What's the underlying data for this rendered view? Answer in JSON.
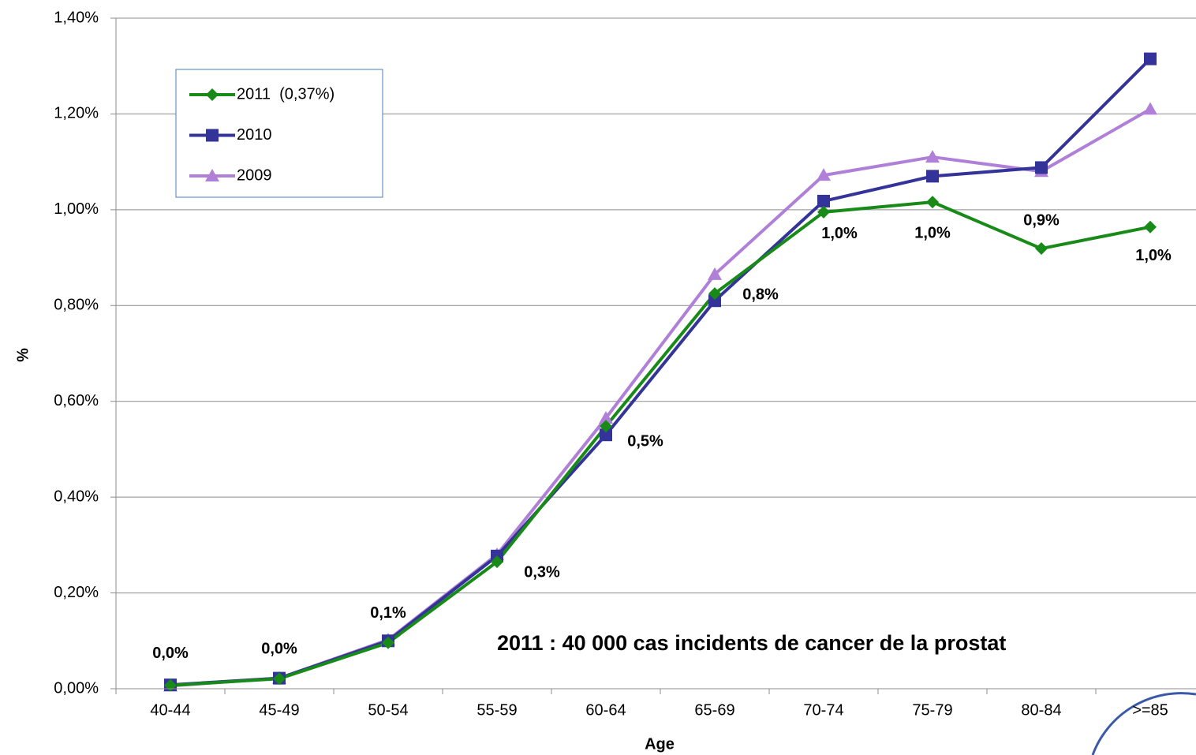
{
  "chart_data": {
    "type": "line",
    "y_label": "%",
    "x_label": "Age",
    "annotation": "2011 : 40 000 cas incidents de cancer de la prostat",
    "categories": [
      "40-44",
      "45-49",
      "50-54",
      "55-59",
      "60-64",
      "65-69",
      "70-74",
      "75-79",
      "80-84",
      ">=85"
    ],
    "series": [
      {
        "name": "2011  (0,37%)",
        "color": "#178a17",
        "marker": "diamond",
        "values": [
          0.007,
          0.021,
          0.096,
          0.265,
          0.548,
          0.825,
          0.995,
          1.016,
          0.919,
          0.964
        ],
        "value_labels": [
          "0,0%",
          "0,0%",
          "0,1%",
          "0,3%",
          "0,5%",
          "0,8%",
          "1,0%",
          "1,0%",
          "0,9%",
          "1,0%"
        ]
      },
      {
        "name": "2010",
        "color": "#333399",
        "marker": "square",
        "values": [
          0.008,
          0.022,
          0.1,
          0.277,
          0.53,
          0.81,
          1.018,
          1.07,
          1.088,
          1.315
        ]
      },
      {
        "name": "2009",
        "color": "#b07fd8",
        "marker": "triangle",
        "values": [
          0.006,
          0.022,
          0.102,
          0.28,
          0.565,
          0.865,
          1.072,
          1.11,
          1.08,
          1.21
        ]
      }
    ],
    "ylim": [
      0,
      1.4
    ],
    "yticks": [
      {
        "value": 0,
        "label": "0,00%"
      },
      {
        "value": 0.2,
        "label": "0,20%"
      },
      {
        "value": 0.4,
        "label": "0,40%"
      },
      {
        "value": 0.6,
        "label": "0,60%"
      },
      {
        "value": 0.8,
        "label": "0,80%"
      },
      {
        "value": 1.0,
        "label": "1,00%"
      },
      {
        "value": 1.2,
        "label": "1,20%"
      },
      {
        "value": 1.4,
        "label": "1,40%"
      }
    ],
    "grid": true
  }
}
